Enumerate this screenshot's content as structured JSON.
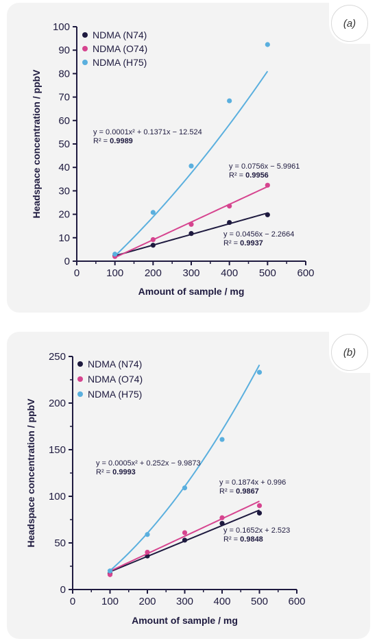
{
  "chart_data": [
    {
      "type": "scatter",
      "panel_label": "(a)",
      "xlabel": "Amount of sample / mg",
      "ylabel": "Headspace concentration / ppbV",
      "xlim": [
        0,
        600
      ],
      "ylim": [
        0,
        100
      ],
      "xticks": [
        0,
        100,
        200,
        300,
        400,
        500,
        600
      ],
      "yticks": [
        0,
        10,
        20,
        30,
        40,
        50,
        60,
        70,
        80,
        90,
        100
      ],
      "legend_position": "top-left",
      "series": [
        {
          "name": "NDMA (N74)",
          "color": "#1e1a3f",
          "x": [
            100,
            200,
            300,
            400,
            500
          ],
          "y": [
            2.3,
            6.8,
            11.8,
            16.5,
            19.8
          ],
          "fit": {
            "type": "linear",
            "coef": [
              0.0456,
              -2.2664
            ]
          },
          "equation": "y = 0.0456x − 2.2664",
          "r2_label": "R² = ",
          "r2": "0.9937"
        },
        {
          "name": "NDMA (O74)",
          "color": "#d6448f",
          "x": [
            100,
            200,
            300,
            400,
            500
          ],
          "y": [
            2.0,
            9.2,
            15.7,
            23.5,
            32.4
          ],
          "fit": {
            "type": "linear",
            "coef": [
              0.0756,
              -5.9961
            ]
          },
          "equation": "y = 0.0756x − 5.9961",
          "r2_label": "R² = ",
          "r2": "0.9956"
        },
        {
          "name": "NDMA (H75)",
          "color": "#5aafde",
          "x": [
            100,
            200,
            300,
            400,
            500
          ],
          "y": [
            3.0,
            20.8,
            40.6,
            68.4,
            92.4
          ],
          "fit": {
            "type": "quadratic",
            "coef": [
              0.0001,
              0.1371,
              -12.524
            ]
          },
          "equation": "y = 0.0001x² + 0.1371x − 12.524",
          "r2_label": "R² = ",
          "r2": "0.9989"
        }
      ]
    },
    {
      "type": "scatter",
      "panel_label": "(b)",
      "xlabel": "Amount of sample / mg",
      "ylabel": "Headspace concentration / ppbV",
      "xlim": [
        0,
        600
      ],
      "ylim": [
        0,
        250
      ],
      "xticks": [
        0,
        100,
        200,
        300,
        400,
        500,
        600
      ],
      "yticks": [
        0,
        50,
        100,
        150,
        200,
        250
      ],
      "legend_position": "top-left",
      "series": [
        {
          "name": "NDMA (N74)",
          "color": "#1e1a3f",
          "x": [
            100,
            200,
            300,
            400,
            500
          ],
          "y": [
            17,
            36,
            53,
            71,
            82
          ],
          "fit": {
            "type": "linear",
            "coef": [
              0.1652,
              2.523
            ]
          },
          "equation": "y = 0.1652x + 2.523",
          "r2_label": "R² = ",
          "r2": "0.9848"
        },
        {
          "name": "NDMA (O74)",
          "color": "#d6448f",
          "x": [
            100,
            200,
            300,
            400,
            500
          ],
          "y": [
            16,
            40,
            61,
            77,
            90
          ],
          "fit": {
            "type": "linear",
            "coef": [
              0.1874,
              0.996
            ]
          },
          "equation": "y = 0.1874x + 0.996",
          "r2_label": "R² = ",
          "r2": "0.9867"
        },
        {
          "name": "NDMA (H75)",
          "color": "#5aafde",
          "x": [
            100,
            200,
            300,
            400,
            500
          ],
          "y": [
            20,
            59,
            109,
            161,
            233
          ],
          "fit": {
            "type": "quadratic",
            "coef": [
              0.0005,
              0.252,
              -9.9873
            ]
          },
          "equation": "y = 0.0005x² + 0.252x − 9.9873",
          "r2_label": "R² = ",
          "r2": "0.9993"
        }
      ]
    }
  ]
}
